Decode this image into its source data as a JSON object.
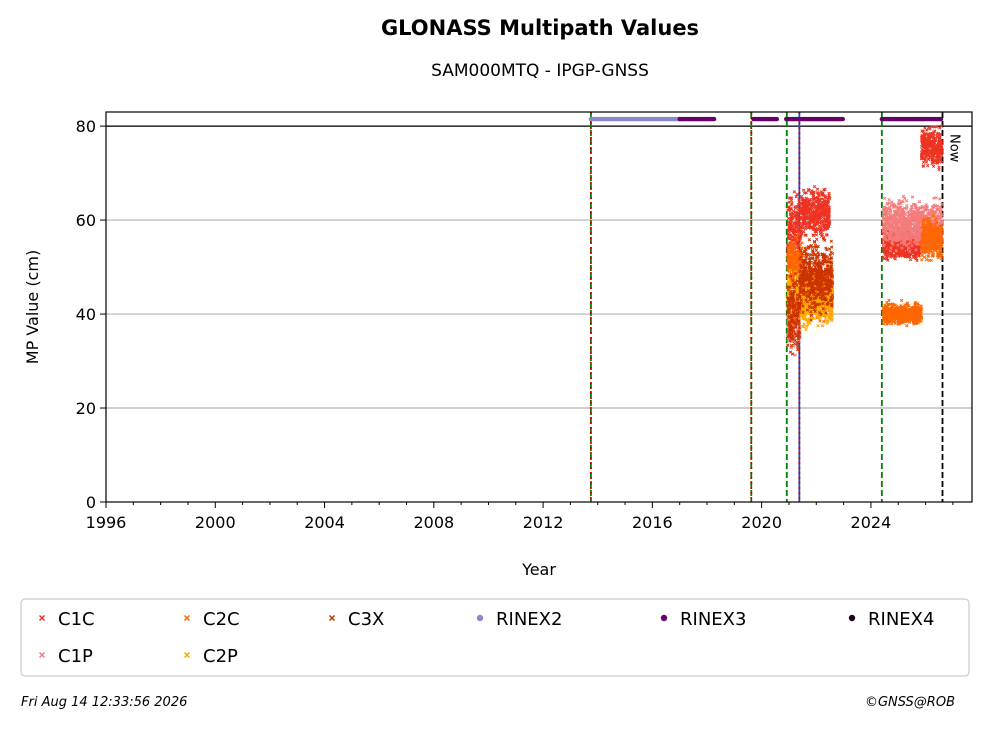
{
  "header": {
    "title": "GLONASS Multipath Values",
    "subtitle": "SAM000MTQ - IPGP-GNSS"
  },
  "footer": {
    "timestamp": "Fri Aug 14 12:33:56 2026",
    "credit": "©GNSS@ROB"
  },
  "chart_data": {
    "type": "scatter",
    "title": "GLONASS Multipath Values",
    "subtitle": "SAM000MTQ - IPGP-GNSS",
    "xlabel": "Year",
    "ylabel": "MP Value (cm)",
    "xlim": [
      1996,
      2027.7
    ],
    "ylim": [
      0,
      83
    ],
    "xticks": [
      1996,
      2000,
      2004,
      2008,
      2012,
      2016,
      2020,
      2024
    ],
    "yticks": [
      0,
      20,
      40,
      60,
      80
    ],
    "grid": "horizontal",
    "legend_position": "bottom",
    "now_label": "Now",
    "now_x": 2026.62,
    "vlines": [
      {
        "x": 2013.75,
        "color": "#008000",
        "style": "dashed"
      },
      {
        "x": 2013.75,
        "color": "#cc0000",
        "style": "dotted"
      },
      {
        "x": 2019.62,
        "color": "#008000",
        "style": "dashed"
      },
      {
        "x": 2019.62,
        "color": "#cc0000",
        "style": "dotted"
      },
      {
        "x": 2020.92,
        "color": "#008000",
        "style": "dashed"
      },
      {
        "x": 2021.38,
        "color": "#1f4fd1",
        "style": "solid"
      },
      {
        "x": 2021.38,
        "color": "#cc0000",
        "style": "dotted"
      },
      {
        "x": 2024.4,
        "color": "#008000",
        "style": "dashed"
      }
    ],
    "series": [
      {
        "name": "C1C",
        "color": "#ee3322",
        "marker": "x",
        "clusters": [
          {
            "x": [
              2020.95,
              2021.45
            ],
            "y": [
              48,
              68
            ]
          },
          {
            "x": [
              2021.45,
              2022.5
            ],
            "y": [
              55,
              68
            ]
          },
          {
            "x": [
              2024.45,
              2025.85
            ],
            "y": [
              50,
              60
            ]
          },
          {
            "x": [
              2025.85,
              2026.6
            ],
            "y": [
              70,
              81
            ]
          }
        ]
      },
      {
        "name": "C1P",
        "color": "#f47c7c",
        "marker": "x",
        "clusters": [
          {
            "x": [
              2020.95,
              2021.4
            ],
            "y": [
              30,
              50
            ]
          },
          {
            "x": [
              2024.45,
              2026.6
            ],
            "y": [
              52,
              66
            ]
          }
        ]
      },
      {
        "name": "C2C",
        "color": "#ff6600",
        "marker": "x",
        "clusters": [
          {
            "x": [
              2020.95,
              2021.5
            ],
            "y": [
              44,
              58
            ]
          },
          {
            "x": [
              2021.5,
              2022.6
            ],
            "y": [
              38,
              52
            ]
          },
          {
            "x": [
              2024.45,
              2025.85
            ],
            "y": [
              37,
              43
            ]
          },
          {
            "x": [
              2025.85,
              2026.6
            ],
            "y": [
              50,
              62
            ]
          }
        ]
      },
      {
        "name": "C2P",
        "color": "#ffaa00",
        "marker": "x",
        "clusters": [
          {
            "x": [
              2020.95,
              2022.6
            ],
            "y": [
              36,
              50
            ]
          }
        ]
      },
      {
        "name": "C3X",
        "color": "#cc3300",
        "marker": "x",
        "clusters": [
          {
            "x": [
              2020.95,
              2021.4
            ],
            "y": [
              28,
              52
            ]
          },
          {
            "x": [
              2021.4,
              2022.6
            ],
            "y": [
              38,
              58
            ]
          }
        ]
      },
      {
        "name": "RINEX2",
        "color": "#8888cc",
        "marker": "dot",
        "segments": [
          [
            2013.75,
            2017.0
          ]
        ],
        "y": 81.5
      },
      {
        "name": "RINEX3",
        "color": "#660066",
        "marker": "dot",
        "segments": [
          [
            2017.0,
            2018.3
          ],
          [
            2019.7,
            2020.6
          ],
          [
            2020.9,
            2023.0
          ],
          [
            2024.4,
            2026.6
          ]
        ],
        "y": 81.5
      },
      {
        "name": "RINEX4",
        "color": "#220022",
        "marker": "dot",
        "segments": [],
        "y": 81.5
      }
    ]
  }
}
